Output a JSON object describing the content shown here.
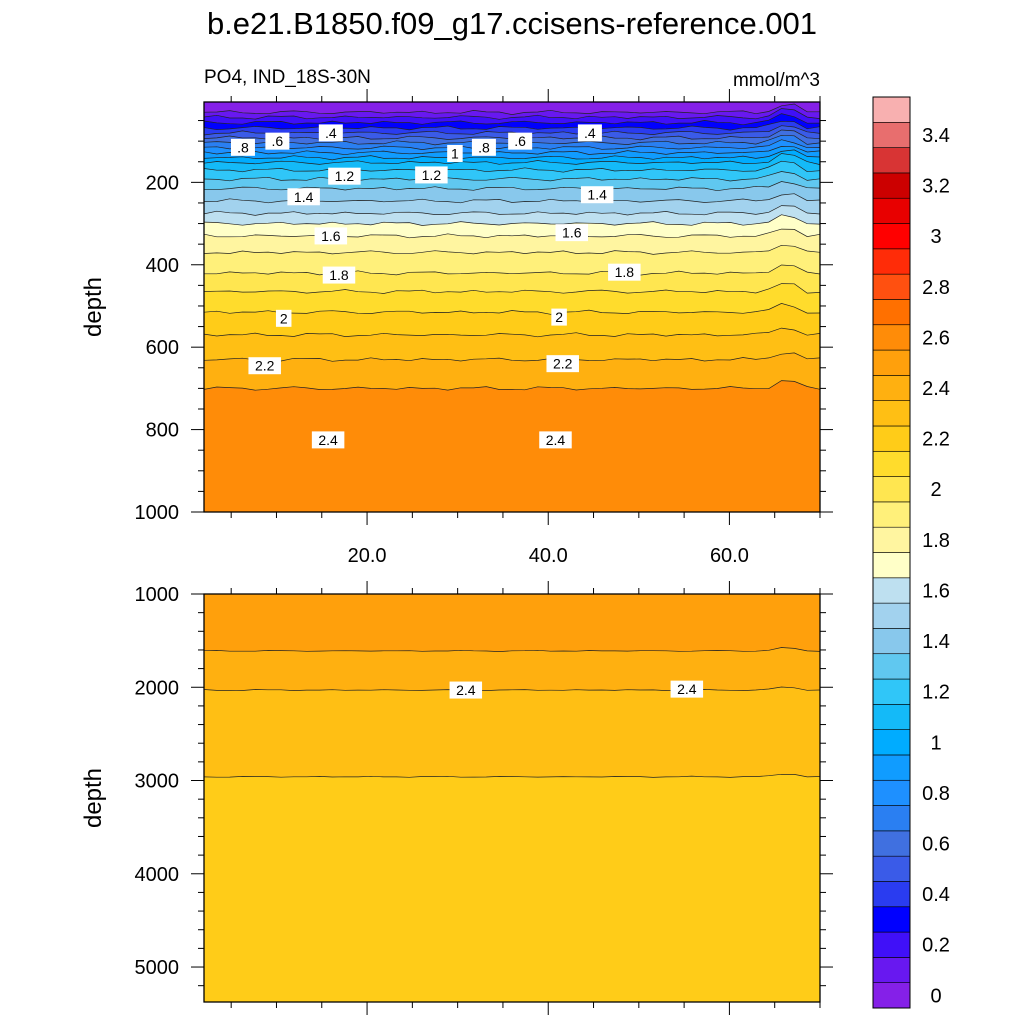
{
  "figure": {
    "title": "b.e21.B1850.f09_g17.ccisens-reference.001",
    "left_string": "PO4, IND_18S-30N",
    "right_string": "mmol/m^3"
  },
  "chart_data": [
    {
      "type": "heatmap",
      "panel": "upper",
      "title": "PO4, IND_18S-30N",
      "units": "mmol/m^3",
      "xlabel": "",
      "ylabel": "depth",
      "xlim": [
        2,
        70
      ],
      "ylim": [
        1000,
        0
      ],
      "xticks": [
        20,
        40,
        60
      ],
      "xtick_labels": [
        "20.0",
        "40.0",
        "60.0"
      ],
      "yticks": [
        200,
        400,
        600,
        800,
        1000
      ],
      "ytick_labels": [
        "200",
        "400",
        "600",
        "800",
        "1000"
      ],
      "top_depth": 5,
      "contour_levels": [
        0.1,
        0.2,
        0.3,
        0.4,
        0.5,
        0.6,
        0.7,
        0.8,
        0.9,
        1.0,
        1.1,
        1.2,
        1.3,
        1.4,
        1.5,
        1.6,
        1.7,
        1.8,
        1.9,
        2.0,
        2.1,
        2.2,
        2.3,
        2.4,
        2.5
      ],
      "contour_depths": [
        30,
        42,
        55,
        68,
        80,
        92,
        104,
        116,
        128,
        140,
        152,
        170,
        192,
        215,
        245,
        275,
        300,
        330,
        370,
        420,
        465,
        515,
        570,
        630,
        700
      ],
      "fill_below": 2.6,
      "contour_labels": [
        {
          "text": ".8",
          "x": 6.3,
          "depth": 115
        },
        {
          "text": ".6",
          "x": 10.1,
          "depth": 100
        },
        {
          "text": ".4",
          "x": 16.0,
          "depth": 80
        },
        {
          "text": "1",
          "x": 29.7,
          "depth": 130
        },
        {
          "text": ".8",
          "x": 32.9,
          "depth": 115
        },
        {
          "text": ".6",
          "x": 36.9,
          "depth": 100
        },
        {
          "text": ".4",
          "x": 44.6,
          "depth": 80
        },
        {
          "text": "1.2",
          "x": 17.5,
          "depth": 185
        },
        {
          "text": "1.2",
          "x": 27.1,
          "depth": 182
        },
        {
          "text": "1.4",
          "x": 13.0,
          "depth": 235
        },
        {
          "text": "1.4",
          "x": 45.4,
          "depth": 230
        },
        {
          "text": "1.6",
          "x": 16.0,
          "depth": 330
        },
        {
          "text": "1.6",
          "x": 42.6,
          "depth": 322
        },
        {
          "text": "1.8",
          "x": 16.9,
          "depth": 425
        },
        {
          "text": "1.8",
          "x": 48.4,
          "depth": 418
        },
        {
          "text": "2",
          "x": 10.8,
          "depth": 530
        },
        {
          "text": "2",
          "x": 41.2,
          "depth": 527
        },
        {
          "text": "2.2",
          "x": 8.7,
          "depth": 645
        },
        {
          "text": "2.2",
          "x": 41.6,
          "depth": 640
        },
        {
          "text": "2.4",
          "x": 15.7,
          "depth": 825
        },
        {
          "text": "2.4",
          "x": 40.8,
          "depth": 825
        }
      ]
    },
    {
      "type": "heatmap",
      "panel": "lower",
      "xlabel": "",
      "ylabel": "depth",
      "xlim": [
        2,
        70
      ],
      "ylim": [
        5375,
        1000
      ],
      "xticks": [
        20,
        40,
        60
      ],
      "xtick_labels": [],
      "yticks": [
        1000,
        2000,
        3000,
        4000,
        5000
      ],
      "ytick_labels": [
        "1000",
        "2000",
        "3000",
        "4000",
        "5000"
      ],
      "contour_levels": [
        2.5,
        2.4,
        2.3
      ],
      "contour_depths": [
        1610,
        2030,
        2960
      ],
      "contour_labels": [
        {
          "text": "2.4",
          "x": 30.9,
          "depth": 2030
        },
        {
          "text": "2.4",
          "x": 55.3,
          "depth": 2020
        }
      ]
    }
  ],
  "colorbar": {
    "levels": [
      0,
      0.1,
      0.2,
      0.3,
      0.4,
      0.5,
      0.6,
      0.7,
      0.8,
      0.9,
      1.0,
      1.1,
      1.2,
      1.3,
      1.4,
      1.5,
      1.6,
      1.7,
      1.8,
      1.9,
      2.0,
      2.1,
      2.2,
      2.3,
      2.4,
      2.5,
      2.6,
      2.7,
      2.8,
      2.9,
      3.0,
      3.1,
      3.2,
      3.3,
      3.4,
      3.5
    ],
    "labels": [
      "0",
      "0.2",
      "0.4",
      "0.6",
      "0.8",
      "1",
      "1.2",
      "1.4",
      "1.6",
      "1.8",
      "2",
      "2.2",
      "2.4",
      "2.6",
      "2.8",
      "3",
      "3.2",
      "3.4"
    ],
    "colors": [
      "#8520e8",
      "#6818f0",
      "#4010f8",
      "#0000ff",
      "#2a3cf0",
      "#3a5be8",
      "#4070e0",
      "#2a7ff2",
      "#1e90ff",
      "#109cff",
      "#00acff",
      "#14baf8",
      "#30c6f8",
      "#60c8f0",
      "#88c8ec",
      "#a2d2ee",
      "#bee0f0",
      "#ffffc8",
      "#fff5a0",
      "#fff07a",
      "#ffe650",
      "#ffdc2c",
      "#ffcc18",
      "#ffbf14",
      "#ffb010",
      "#ffa00c",
      "#ff8c08",
      "#ff7000",
      "#ff5010",
      "#ff2c08",
      "#ff0000",
      "#e80000",
      "#cc0000",
      "#d83434",
      "#e86e6e",
      "#f8b0b0"
    ]
  }
}
